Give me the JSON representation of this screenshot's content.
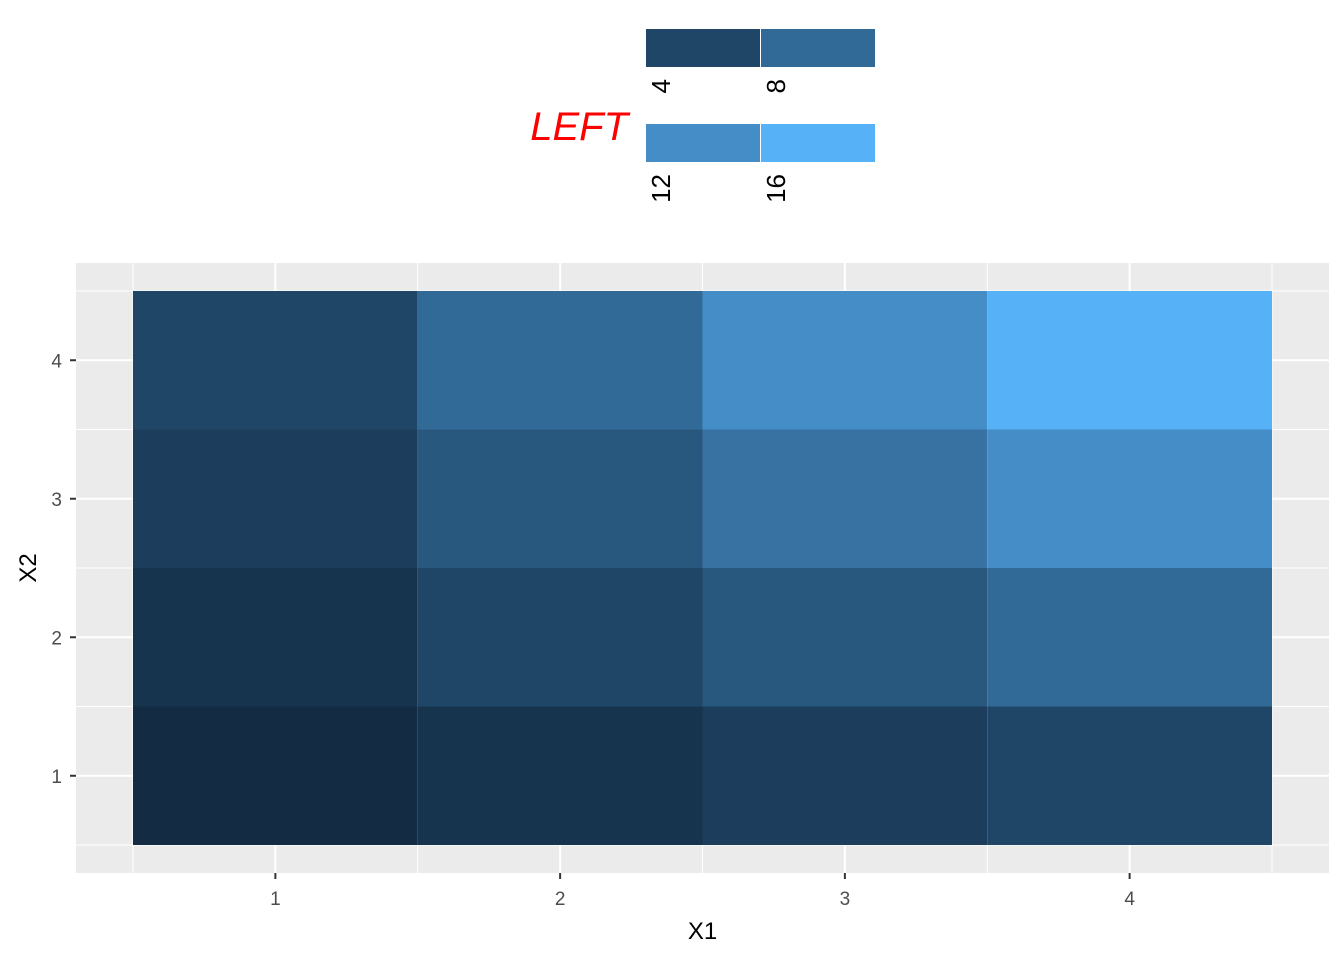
{
  "chart_data": {
    "type": "heatmap",
    "title": "",
    "xlabel": "X1",
    "ylabel": "X2",
    "x_ticks": [
      "1",
      "2",
      "3",
      "4"
    ],
    "y_ticks": [
      "1",
      "2",
      "3",
      "4"
    ],
    "xlim": [
      0.5,
      4.5
    ],
    "ylim": [
      0.5,
      4.5
    ],
    "grid": true,
    "cells": [
      {
        "x": 1,
        "y": 1,
        "value": 1
      },
      {
        "x": 2,
        "y": 1,
        "value": 2
      },
      {
        "x": 3,
        "y": 1,
        "value": 3
      },
      {
        "x": 4,
        "y": 1,
        "value": 4
      },
      {
        "x": 1,
        "y": 2,
        "value": 2
      },
      {
        "x": 2,
        "y": 2,
        "value": 4
      },
      {
        "x": 3,
        "y": 2,
        "value": 6
      },
      {
        "x": 4,
        "y": 2,
        "value": 8
      },
      {
        "x": 1,
        "y": 3,
        "value": 3
      },
      {
        "x": 2,
        "y": 3,
        "value": 6
      },
      {
        "x": 3,
        "y": 3,
        "value": 9
      },
      {
        "x": 4,
        "y": 3,
        "value": 12
      },
      {
        "x": 1,
        "y": 4,
        "value": 4
      },
      {
        "x": 2,
        "y": 4,
        "value": 8
      },
      {
        "x": 3,
        "y": 4,
        "value": 12
      },
      {
        "x": 4,
        "y": 4,
        "value": 16
      }
    ],
    "legend": {
      "title": "LEFT",
      "title_color": "#FF0000",
      "placement": "top",
      "items": [
        {
          "label": "4",
          "value": 4
        },
        {
          "label": "8",
          "value": 8
        },
        {
          "label": "12",
          "value": 12
        },
        {
          "label": "16",
          "value": 16
        }
      ]
    },
    "colors": {
      "low": "#132B43",
      "high": "#56B1F7",
      "panel_background": "#EBEBEB",
      "grid": "#FFFFFF"
    }
  }
}
